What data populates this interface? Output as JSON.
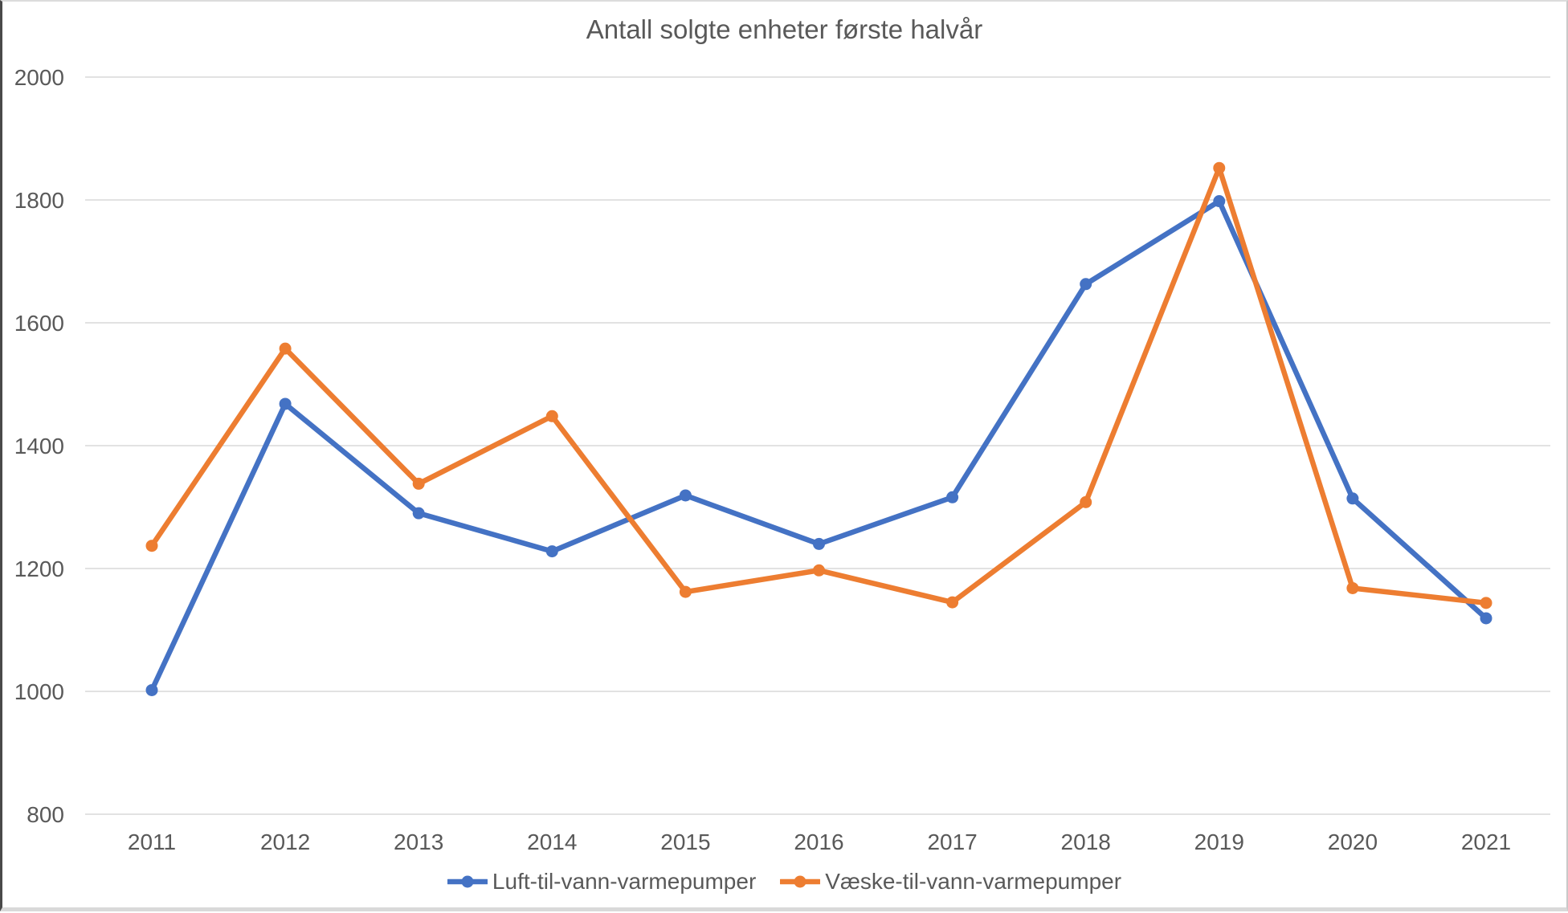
{
  "chart_data": {
    "type": "line",
    "title": "Antall solgte enheter første halvår",
    "categories": [
      "2011",
      "2012",
      "2013",
      "2014",
      "2015",
      "2016",
      "2017",
      "2018",
      "2019",
      "2020",
      "2021"
    ],
    "series": [
      {
        "name": "Luft-til-vann-varmepumper",
        "color": "#4472C4",
        "values": [
          1002,
          1468,
          1290,
          1228,
          1319,
          1240,
          1316,
          1663,
          1798,
          1314,
          1119
        ]
      },
      {
        "name": "Væske-til-vann-varmepumper",
        "color": "#ED7D31",
        "values": [
          1237,
          1558,
          1338,
          1448,
          1162,
          1197,
          1145,
          1308,
          1852,
          1168,
          1144
        ]
      }
    ],
    "xlabel": "",
    "ylabel": "",
    "ylim": [
      800,
      2000
    ],
    "y_step": 200,
    "y_tick_labels": [
      "800",
      "1000",
      "1200",
      "1400",
      "1600",
      "1800",
      "2000"
    ],
    "grid": "horizontal",
    "gridline_color": "#D9D9D9",
    "text_color": "#595959",
    "legend_position": "bottom",
    "marker": "circle",
    "line_width": 6.5,
    "marker_radius": 7.5
  }
}
